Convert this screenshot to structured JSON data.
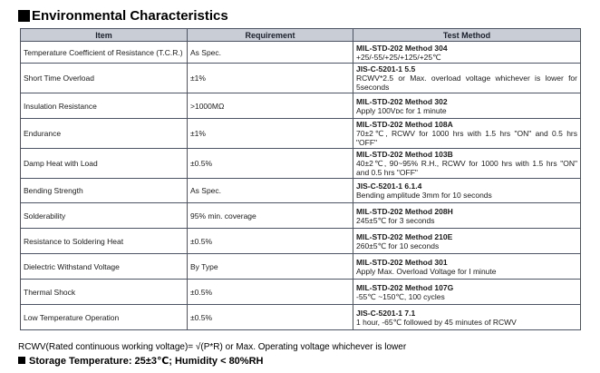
{
  "heading": "Environmental Characteristics",
  "columns": [
    "Item",
    "Requirement",
    "Test Method"
  ],
  "rows": [
    {
      "item": "Temperature Coefficient of Resistance (T.C.R.)",
      "requirement": "As Spec.",
      "std": "MIL-STD-202   Method 304",
      "detail": "+25/-55/+25/+125/+25℃"
    },
    {
      "item": "Short Time Overload",
      "requirement": "±1%",
      "std": "JIS-C-5201-1 5.5",
      "detail": "RCWV*2.5 or Max. overload voltage whichever is lower for 5seconds"
    },
    {
      "item": "Insulation Resistance",
      "requirement": ">1000MΩ",
      "std": "MIL-STD-202   Method 302",
      "detail": "Apply 100Vᴅᴄ for 1 minute"
    },
    {
      "item": "Endurance",
      "requirement": "±1%",
      "std": "MIL-STD-202 Method 108A",
      "detail": "70±2℃, RCWV for 1000 hrs with 1.5 hrs \"ON\" and 0.5 hrs \"OFF\""
    },
    {
      "item": "Damp Heat with Load",
      "requirement": "±0.5%",
      "std": "MIL-STD-202   Method 103B",
      "detail": "40±2℃, 90~95% R.H., RCWV for 1000 hrs with 1.5 hrs \"ON\" and 0.5 hrs \"OFF\""
    },
    {
      "item": "Bending Strength",
      "requirement": "As Spec.",
      "std": "JIS-C-5201-1 6.1.4",
      "detail": "Bending amplitude 3mm for 10 seconds"
    },
    {
      "item": "Solderability",
      "requirement": "95% min. coverage",
      "std": "MIL-STD-202   Method 208H",
      "detail": "245±5℃ for 3 seconds"
    },
    {
      "item": "Resistance to Soldering Heat",
      "requirement": "±0.5%",
      "std": "MIL-STD-202   Method 210E",
      "detail": "260±5℃ for 10 seconds"
    },
    {
      "item": "Dielectric Withstand Voltage",
      "requirement": "By Type",
      "std": "MIL-STD-202 Method 301",
      "detail": "Apply Max. Overload Voltage for I minute"
    },
    {
      "item": "Thermal Shock",
      "requirement": "±0.5%",
      "std": "MIL-STD-202   Method 107G",
      "detail": "-55℃ ~150℃, 100 cycles"
    },
    {
      "item": "Low Temperature Operation",
      "requirement": "±0.5%",
      "std": "JIS-C-5201-1 7.1",
      "detail": "1 hour, -65℃ followed by 45 minutes of RCWV"
    }
  ],
  "footer_note": "RCWV(Rated continuous working voltage)= √(P*R) or Max. Operating voltage whichever is lower",
  "storage": "Storage Temperature: 25±3℃; Humidity < 80%RH"
}
